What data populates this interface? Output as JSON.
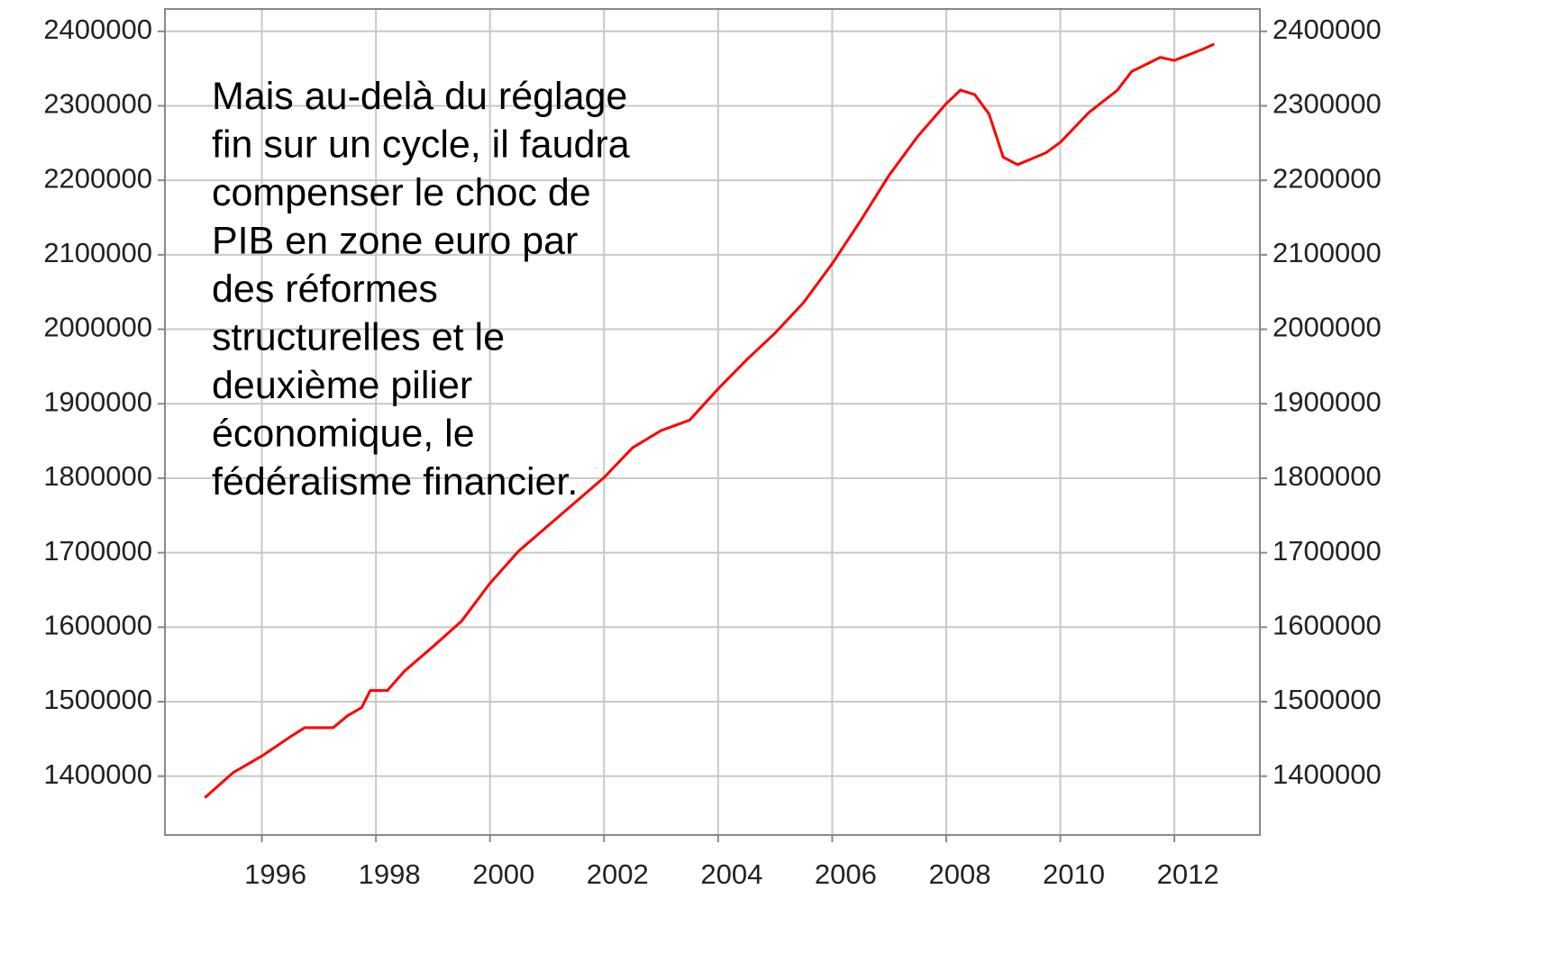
{
  "chart_data": {
    "type": "line",
    "annotation": [
      "Mais au-delà du réglage",
      "fin sur un cycle, il faudra",
      "compenser le choc de",
      "PIB en zone euro par",
      "des réformes",
      "structurelles et le",
      "deuxième pilier",
      "économique, le",
      "fédéralisme financier."
    ],
    "x": [
      1995.0,
      1995.5,
      1996.0,
      1996.5,
      1996.75,
      1997.25,
      1997.5,
      1997.75,
      1997.9,
      1998.2,
      1998.5,
      1999.0,
      1999.5,
      2000.0,
      2000.5,
      2001.0,
      2001.5,
      2002.0,
      2002.5,
      2003.0,
      2003.5,
      2004.0,
      2004.5,
      2005.0,
      2005.5,
      2006.0,
      2006.5,
      2007.0,
      2007.5,
      2008.0,
      2008.25,
      2008.5,
      2008.75,
      2009.0,
      2009.25,
      2009.75,
      2010.0,
      2010.5,
      2011.0,
      2011.25,
      2011.75,
      2012.0,
      2012.5,
      2012.7
    ],
    "series": [
      {
        "color": "#ff0000",
        "values": [
          1371000,
          1405000,
          1427000,
          1453000,
          1465000,
          1465000,
          1481000,
          1492000,
          1515000,
          1515000,
          1541000,
          1574000,
          1608000,
          1659000,
          1702000,
          1735000,
          1768000,
          1801000,
          1841000,
          1864000,
          1878000,
          1920000,
          1959000,
          1995000,
          2036000,
          2088000,
          2146000,
          2207000,
          2259000,
          2303000,
          2321000,
          2315000,
          2289000,
          2231000,
          2221000,
          2237000,
          2251000,
          2291000,
          2321000,
          2346000,
          2365000,
          2361000,
          2376000,
          2383000
        ]
      }
    ],
    "xlim": [
      1994.3,
      2013.5
    ],
    "xticks": [
      1996,
      1998,
      2000,
      2002,
      2004,
      2006,
      2008,
      2010,
      2012
    ],
    "ylim": [
      1321000,
      2430000
    ],
    "yticks": [
      1400000,
      1500000,
      1600000,
      1700000,
      1800000,
      1900000,
      2000000,
      2100000,
      2200000,
      2300000,
      2400000
    ],
    "y2lim": [
      1321000,
      2430000
    ],
    "y2ticks": [
      1400000,
      1500000,
      1600000,
      1700000,
      1800000,
      1900000,
      2000000,
      2100000,
      2200000,
      2300000,
      2400000
    ],
    "grid": true
  }
}
